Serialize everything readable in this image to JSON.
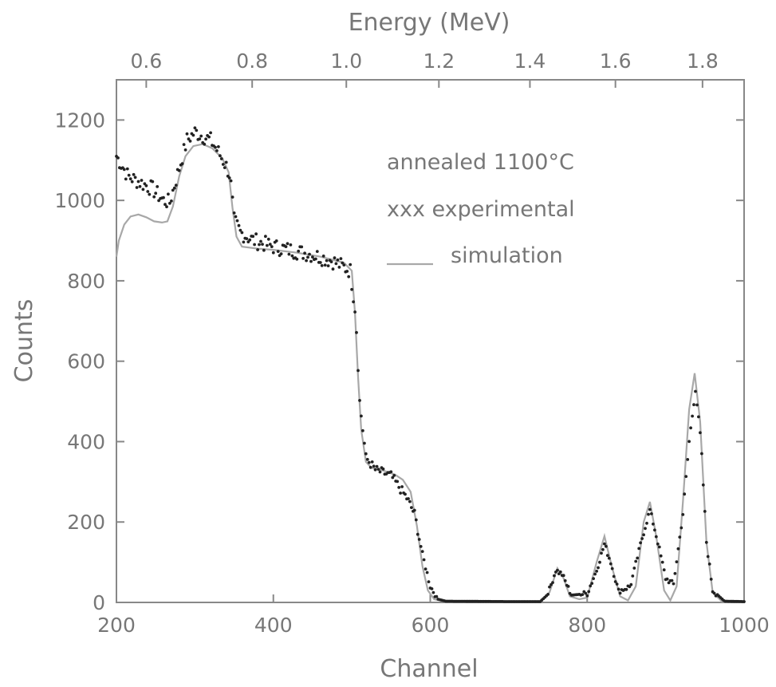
{
  "chart_data": {
    "type": "scatter",
    "xlabel": "Channel",
    "ylabel": "Counts",
    "top_axis_label": "Energy (MeV)",
    "xlim": [
      200,
      1000
    ],
    "ylim": [
      0,
      1300
    ],
    "x_ticks": [
      200,
      400,
      600,
      800,
      1000
    ],
    "y_ticks": [
      0,
      200,
      400,
      600,
      800,
      1000,
      1200
    ],
    "top_ticks": [
      {
        "label": "0.6",
        "channel": 238
      },
      {
        "label": "0.8",
        "channel": 373
      },
      {
        "label": "1.0",
        "channel": 493
      },
      {
        "label": "1.2",
        "channel": 611
      },
      {
        "label": "1.4",
        "channel": 727
      },
      {
        "label": "1.6",
        "channel": 836
      },
      {
        "label": "1.8",
        "channel": 947
      }
    ],
    "legend": {
      "title": "annealed 1100°C",
      "experimental_label": "xxx experimental",
      "simulation_label": "simulation",
      "position": "top-right"
    },
    "series": [
      {
        "name": "experimental",
        "style": "points",
        "color": "#222222",
        "anchors": [
          [
            200,
            1110
          ],
          [
            215,
            1060
          ],
          [
            230,
            1045
          ],
          [
            245,
            1030
          ],
          [
            260,
            1000
          ],
          [
            268,
            995
          ],
          [
            280,
            1080
          ],
          [
            290,
            1150
          ],
          [
            300,
            1170
          ],
          [
            310,
            1160
          ],
          [
            320,
            1150
          ],
          [
            330,
            1120
          ],
          [
            340,
            1085
          ],
          [
            345,
            1060
          ],
          [
            350,
            950
          ],
          [
            358,
            920
          ],
          [
            375,
            900
          ],
          [
            400,
            885
          ],
          [
            425,
            875
          ],
          [
            450,
            865
          ],
          [
            475,
            850
          ],
          [
            498,
            825
          ],
          [
            505,
            720
          ],
          [
            510,
            500
          ],
          [
            518,
            360
          ],
          [
            530,
            330
          ],
          [
            550,
            315
          ],
          [
            570,
            260
          ],
          [
            580,
            220
          ],
          [
            590,
            120
          ],
          [
            600,
            40
          ],
          [
            610,
            8
          ],
          [
            620,
            3
          ],
          [
            700,
            2
          ],
          [
            740,
            2
          ],
          [
            750,
            20
          ],
          [
            760,
            80
          ],
          [
            768,
            70
          ],
          [
            780,
            18
          ],
          [
            800,
            22
          ],
          [
            812,
            80
          ],
          [
            822,
            145
          ],
          [
            830,
            100
          ],
          [
            840,
            28
          ],
          [
            855,
            40
          ],
          [
            870,
            160
          ],
          [
            880,
            230
          ],
          [
            890,
            150
          ],
          [
            900,
            60
          ],
          [
            910,
            45
          ],
          [
            922,
            220
          ],
          [
            930,
            400
          ],
          [
            938,
            530
          ],
          [
            945,
            400
          ],
          [
            952,
            150
          ],
          [
            960,
            30
          ],
          [
            975,
            3
          ],
          [
            1000,
            2
          ]
        ]
      },
      {
        "name": "simulation",
        "style": "line",
        "color": "#a8a8a8",
        "points": [
          [
            200,
            860
          ],
          [
            203,
            900
          ],
          [
            210,
            940
          ],
          [
            218,
            960
          ],
          [
            228,
            965
          ],
          [
            238,
            958
          ],
          [
            248,
            948
          ],
          [
            258,
            945
          ],
          [
            265,
            948
          ],
          [
            272,
            985
          ],
          [
            280,
            1060
          ],
          [
            288,
            1110
          ],
          [
            298,
            1135
          ],
          [
            310,
            1140
          ],
          [
            322,
            1130
          ],
          [
            335,
            1105
          ],
          [
            343,
            1070
          ],
          [
            348,
            980
          ],
          [
            353,
            910
          ],
          [
            360,
            885
          ],
          [
            380,
            880
          ],
          [
            400,
            877
          ],
          [
            430,
            870
          ],
          [
            460,
            860
          ],
          [
            490,
            845
          ],
          [
            500,
            825
          ],
          [
            504,
            720
          ],
          [
            508,
            560
          ],
          [
            512,
            430
          ],
          [
            518,
            350
          ],
          [
            525,
            335
          ],
          [
            540,
            328
          ],
          [
            555,
            318
          ],
          [
            565,
            305
          ],
          [
            575,
            275
          ],
          [
            583,
            190
          ],
          [
            590,
            90
          ],
          [
            597,
            30
          ],
          [
            605,
            8
          ],
          [
            620,
            2
          ],
          [
            740,
            2
          ],
          [
            752,
            25
          ],
          [
            762,
            85
          ],
          [
            770,
            60
          ],
          [
            778,
            15
          ],
          [
            790,
            8
          ],
          [
            800,
            12
          ],
          [
            812,
            100
          ],
          [
            822,
            165
          ],
          [
            832,
            85
          ],
          [
            842,
            15
          ],
          [
            852,
            5
          ],
          [
            862,
            40
          ],
          [
            872,
            200
          ],
          [
            880,
            250
          ],
          [
            888,
            165
          ],
          [
            898,
            30
          ],
          [
            906,
            5
          ],
          [
            914,
            40
          ],
          [
            922,
            250
          ],
          [
            930,
            480
          ],
          [
            937,
            570
          ],
          [
            944,
            450
          ],
          [
            952,
            150
          ],
          [
            960,
            25
          ],
          [
            972,
            2
          ],
          [
            1000,
            1
          ]
        ]
      }
    ],
    "grid": false
  }
}
